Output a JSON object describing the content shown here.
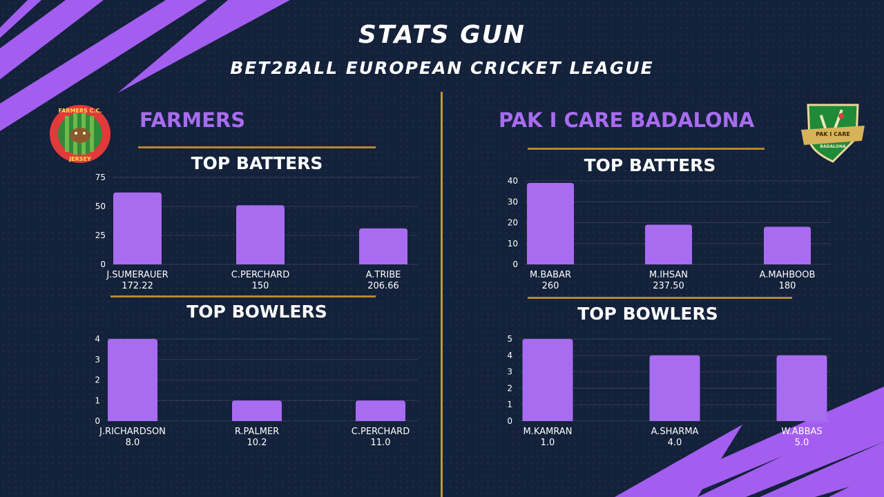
{
  "header": {
    "title": "STATS GUN",
    "subtitle": "BET2BALL EUROPEAN CRICKET LEAGUE"
  },
  "colors": {
    "background": "#13213a",
    "accent": "#a86cf0",
    "bar": "#a86cf0",
    "gold": "#c9962f"
  },
  "teams": [
    {
      "name": "FARMERS",
      "logo_icon": "farmers-cc-jersey-logo",
      "logo_text_top": "FARMERS C.C.",
      "logo_text_bottom": "JERSEY",
      "batters_title": "TOP BATTERS",
      "bowlers_title": "TOP BOWLERS"
    },
    {
      "name": "PAK I CARE BADALONA",
      "logo_icon": "pak-i-care-badalona-shield-logo",
      "logo_text_top": "PAK I CARE",
      "logo_text_bottom": "BADALONA",
      "batters_title": "TOP BATTERS",
      "bowlers_title": "TOP BOWLERS"
    }
  ],
  "chart_data": [
    {
      "type": "bar",
      "title": "TOP BATTERS",
      "categories": [
        "J.SUMERAUER",
        "C.PERCHARD",
        "A.TRIBE"
      ],
      "sublabels": [
        "172.22",
        "150",
        "206.66"
      ],
      "values": [
        62,
        51,
        31
      ],
      "ylim": [
        0,
        75
      ],
      "yticks": [
        0,
        25,
        50,
        75
      ],
      "grid": true
    },
    {
      "type": "bar",
      "title": "TOP BOWLERS",
      "categories": [
        "J.RICHARDSON",
        "R.PALMER",
        "C.PERCHARD"
      ],
      "sublabels": [
        "8.0",
        "10.2",
        "11.0"
      ],
      "values": [
        4,
        1,
        1
      ],
      "ylim": [
        0,
        4
      ],
      "yticks": [
        0,
        1,
        2,
        3,
        4
      ],
      "grid": true
    },
    {
      "type": "bar",
      "title": "TOP BATTERS",
      "categories": [
        "M.BABAR",
        "M.IHSAN",
        "A.MAHBOOB"
      ],
      "sublabels": [
        "260",
        "237.50",
        "180"
      ],
      "values": [
        39,
        19,
        18
      ],
      "ylim": [
        0,
        40
      ],
      "yticks": [
        0,
        10,
        20,
        30,
        40
      ],
      "grid": true
    },
    {
      "type": "bar",
      "title": "TOP BOWLERS",
      "categories": [
        "M.KAMRAN",
        "A.SHARMA",
        "W.ABBAS"
      ],
      "sublabels": [
        "1.0",
        "4.0",
        "5.0"
      ],
      "values": [
        5,
        4,
        4
      ],
      "ylim": [
        0,
        5
      ],
      "yticks": [
        0,
        1,
        2,
        3,
        4,
        5
      ],
      "grid": true
    }
  ]
}
